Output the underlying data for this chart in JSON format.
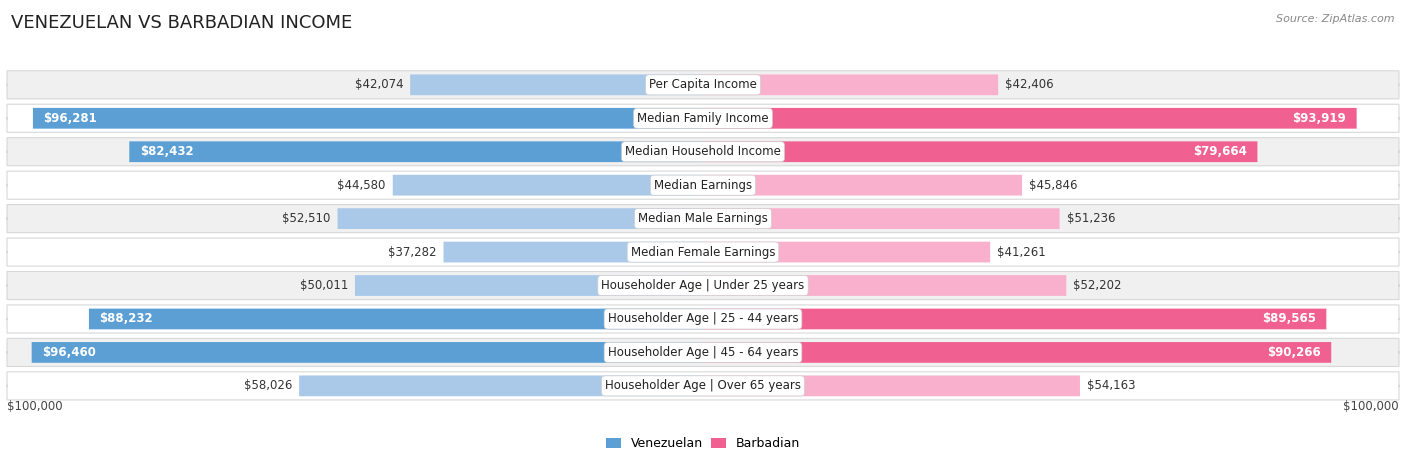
{
  "title": "VENEZUELAN VS BARBADIAN INCOME",
  "source": "Source: ZipAtlas.com",
  "categories": [
    "Per Capita Income",
    "Median Family Income",
    "Median Household Income",
    "Median Earnings",
    "Median Male Earnings",
    "Median Female Earnings",
    "Householder Age | Under 25 years",
    "Householder Age | 25 - 44 years",
    "Householder Age | 45 - 64 years",
    "Householder Age | Over 65 years"
  ],
  "venezuelan_values": [
    42074,
    96281,
    82432,
    44580,
    52510,
    37282,
    50011,
    88232,
    96460,
    58026
  ],
  "barbadian_values": [
    42406,
    93919,
    79664,
    45846,
    51236,
    41261,
    52202,
    89565,
    90266,
    54163
  ],
  "ven_color_light": "#aac8e8",
  "ven_color_dark": "#5b9fd4",
  "bar_color_light": "#f8b0cc",
  "bar_color_dark": "#f06090",
  "row_bg_light": "#f0f0f0",
  "row_bg_white": "#ffffff",
  "max_value": 100000,
  "inside_threshold": 70000,
  "legend_venezuelan": "Venezuelan",
  "legend_barbadian": "Barbadian",
  "axis_label_left": "$100,000",
  "axis_label_right": "$100,000",
  "background_color": "#ffffff",
  "title_fontsize": 13,
  "cat_fontsize": 8.5,
  "value_fontsize": 8.5,
  "source_fontsize": 8
}
